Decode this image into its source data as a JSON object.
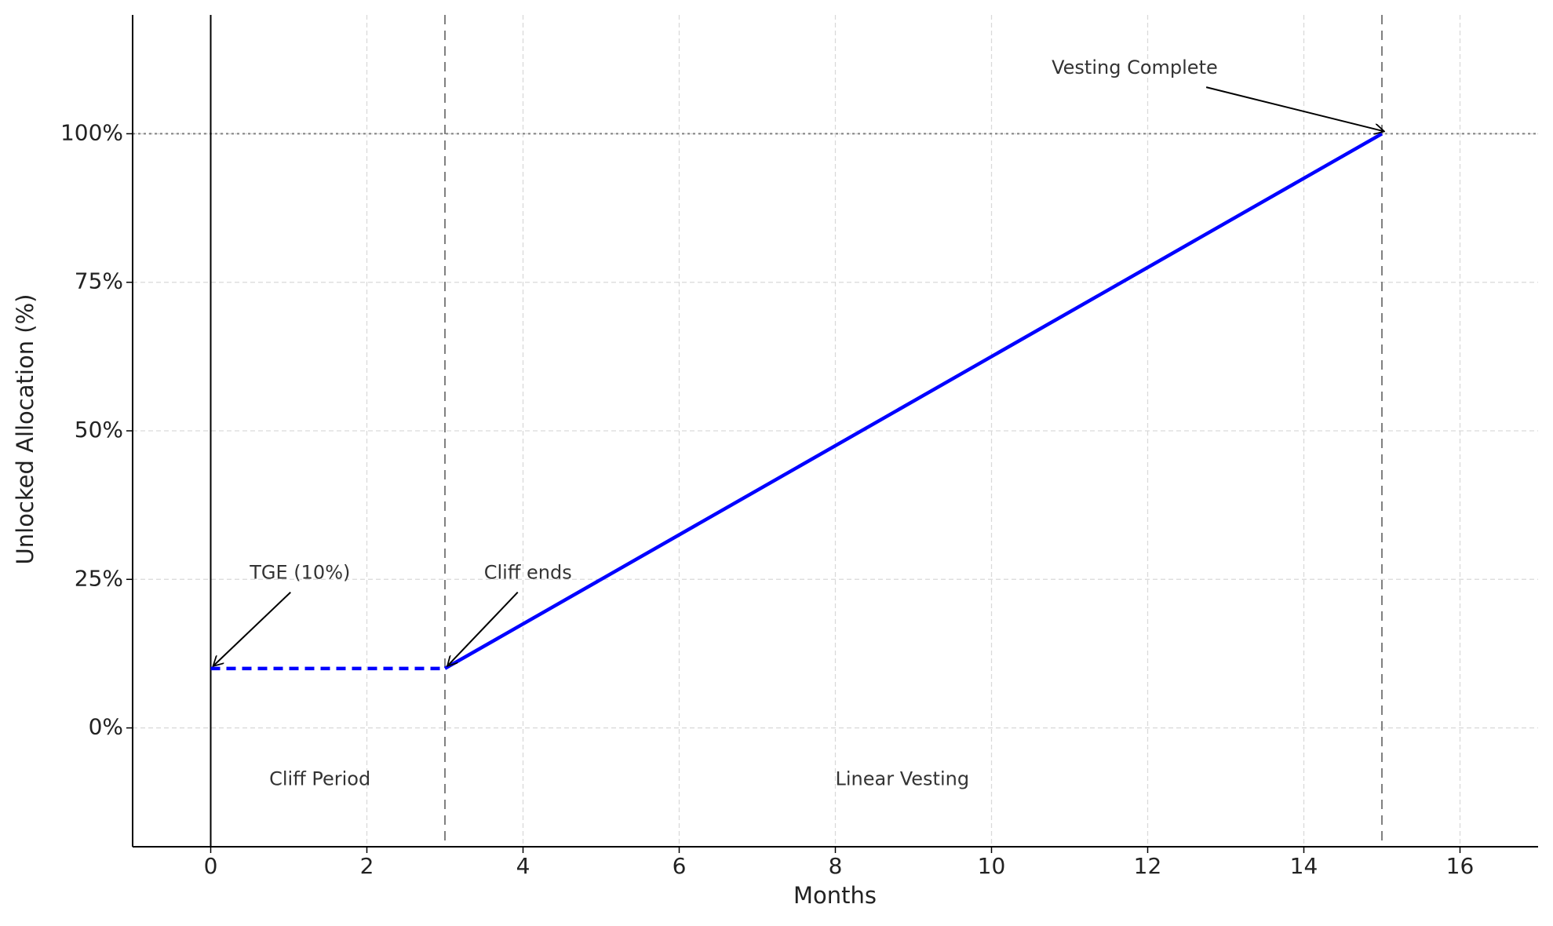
{
  "chart_data": {
    "type": "line",
    "xlabel": "Months",
    "ylabel": "Unlocked Allocation (%)",
    "xlim": [
      -1,
      17
    ],
    "ylim": [
      -20,
      120
    ],
    "xticks": [
      0,
      2,
      4,
      6,
      8,
      10,
      12,
      14,
      16
    ],
    "yticks": [
      {
        "value": 0,
        "label": "0%"
      },
      {
        "value": 25,
        "label": "25%"
      },
      {
        "value": 50,
        "label": "50%"
      },
      {
        "value": 75,
        "label": "75%"
      },
      {
        "value": 100,
        "label": "100%"
      }
    ],
    "grid": true,
    "series": [
      {
        "color": "#0000ff",
        "linestyle": "dashed",
        "x": [
          0,
          3
        ],
        "values": [
          10,
          10
        ]
      },
      {
        "color": "#0000ff",
        "linestyle": "solid",
        "x": [
          3,
          15
        ],
        "values": [
          10,
          100
        ]
      }
    ],
    "vlines": [
      {
        "x": 0,
        "color": "#000000",
        "linestyle": "solid"
      },
      {
        "x": 3,
        "color": "#808080",
        "linestyle": "dashed"
      },
      {
        "x": 15,
        "color": "#808080",
        "linestyle": "dashed"
      }
    ],
    "hlines": [
      {
        "y": 100,
        "color": "#808080",
        "linestyle": "dotted"
      }
    ],
    "annotations": [
      {
        "text": "TGE (10%)",
        "xy": [
          0,
          10
        ]
      },
      {
        "text": "Cliff ends",
        "xy": [
          3,
          10
        ]
      },
      {
        "text": "Vesting Complete",
        "xy": [
          15,
          100
        ]
      },
      {
        "text": "Cliff Period"
      },
      {
        "text": "Linear Vesting"
      }
    ]
  }
}
